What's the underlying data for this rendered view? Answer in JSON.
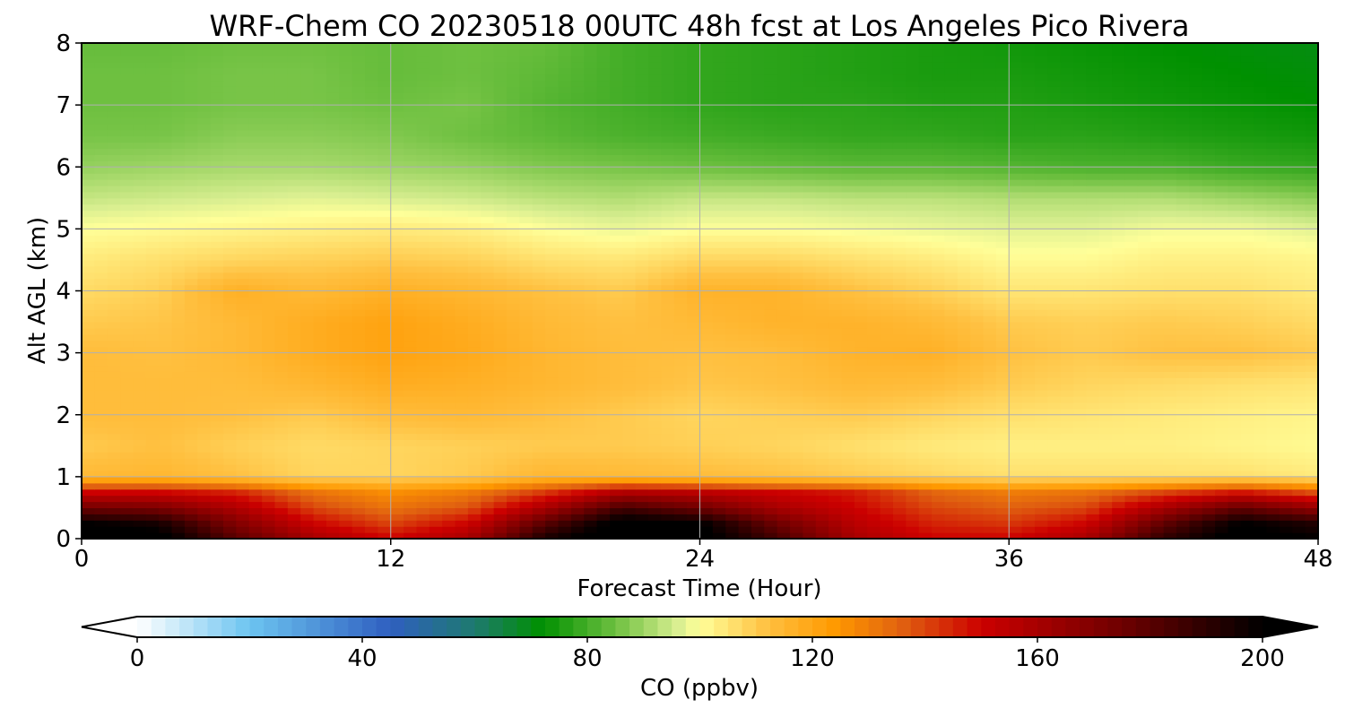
{
  "chart_data": {
    "type": "heatmap",
    "title": "WRF-Chem CO  20230518 00UTC 48h fcst at Los Angeles Pico Rivera",
    "xlabel": "Forecast Time (Hour)",
    "ylabel": "Alt AGL (km)",
    "xlim": [
      0,
      48
    ],
    "ylim": [
      0,
      8
    ],
    "xticks": [
      "0",
      "12",
      "24",
      "36",
      "48"
    ],
    "yticks": [
      "0",
      "1",
      "2",
      "3",
      "4",
      "5",
      "6",
      "7",
      "8"
    ],
    "grid": true,
    "x_hours": [
      0,
      3,
      6,
      9,
      12,
      15,
      18,
      21,
      24,
      27,
      30,
      33,
      36,
      39,
      42,
      45,
      48
    ],
    "y_km": [
      0,
      0.25,
      0.5,
      0.75,
      1,
      1.5,
      2,
      2.5,
      3,
      3.5,
      4,
      4.5,
      5,
      5.5,
      6,
      6.5,
      7,
      7.5,
      8
    ],
    "z_co_ppbv": [
      [
        205,
        205,
        180,
        160,
        150,
        160,
        195,
        210,
        205,
        185,
        160,
        150,
        150,
        160,
        190,
        205,
        200
      ],
      [
        200,
        195,
        170,
        150,
        140,
        150,
        180,
        205,
        200,
        175,
        155,
        145,
        142,
        150,
        178,
        200,
        192
      ],
      [
        175,
        172,
        158,
        140,
        132,
        138,
        160,
        185,
        175,
        160,
        150,
        140,
        136,
        140,
        160,
        178,
        165
      ],
      [
        150,
        150,
        145,
        132,
        126,
        130,
        142,
        158,
        155,
        150,
        146,
        135,
        130,
        132,
        140,
        148,
        138
      ],
      [
        114,
        115,
        112,
        108,
        108,
        110,
        115,
        114,
        113,
        112,
        110,
        108,
        106,
        106,
        106,
        106,
        104
      ],
      [
        110,
        112,
        109,
        107,
        108,
        109,
        110,
        110,
        109,
        108,
        106,
        104,
        103,
        103,
        103,
        102,
        101
      ],
      [
        113,
        113,
        112,
        110,
        113,
        114,
        112,
        110,
        108,
        109,
        110,
        108,
        106,
        105,
        104,
        103,
        102
      ],
      [
        113,
        113,
        113,
        115,
        118,
        117,
        115,
        113,
        111,
        112,
        114,
        113,
        110,
        108,
        107,
        106,
        105
      ],
      [
        113,
        112,
        114,
        118,
        121,
        119,
        115,
        113,
        112,
        113,
        116,
        117,
        112,
        110,
        112,
        112,
        110
      ],
      [
        110,
        111,
        114,
        118,
        121,
        118,
        114,
        112,
        114,
        116,
        116,
        114,
        110,
        109,
        110,
        109,
        107
      ],
      [
        107,
        109,
        117,
        114,
        117,
        115,
        112,
        110,
        116,
        116,
        112,
        109,
        105,
        105,
        106,
        106,
        104
      ],
      [
        104,
        106,
        108,
        109,
        110,
        109,
        106,
        105,
        108,
        108,
        106,
        104,
        101,
        101,
        103,
        103,
        102
      ],
      [
        100,
        101,
        102,
        103,
        104,
        103,
        100,
        98,
        100,
        100,
        99,
        98,
        97,
        97,
        99,
        99,
        97
      ],
      [
        94,
        95,
        96,
        97,
        96,
        95,
        93,
        92,
        94,
        94,
        93,
        93,
        92,
        92,
        92,
        90,
        88
      ],
      [
        89,
        90,
        91,
        91,
        90,
        89,
        87,
        86,
        85,
        84,
        83,
        83,
        82,
        81,
        81,
        79,
        78
      ],
      [
        86,
        86,
        88,
        88,
        87,
        85,
        83,
        81,
        80,
        79,
        78,
        78,
        77,
        77,
        76,
        75,
        74
      ],
      [
        85,
        85,
        86,
        86,
        85,
        86,
        82,
        80,
        78,
        77,
        77,
        76,
        76,
        75,
        74,
        73,
        72
      ],
      [
        85,
        85,
        86,
        86,
        84,
        85,
        83,
        80,
        78,
        77,
        76,
        75,
        75,
        74,
        73,
        72,
        71
      ],
      [
        84,
        84,
        85,
        85,
        84,
        85,
        84,
        80,
        78,
        77,
        76,
        75,
        74,
        73,
        72,
        71,
        70
      ]
    ],
    "colorbar": {
      "label": "CO  (ppbv)",
      "min": 0,
      "max": 200,
      "ticks": [
        "0",
        "40",
        "80",
        "120",
        "160",
        "200"
      ],
      "extend": "both",
      "colormap_stops": [
        {
          "value": 0,
          "color": "#ffffff"
        },
        {
          "value": 20,
          "color": "#6cc4f0"
        },
        {
          "value": 45,
          "color": "#2f5fc0"
        },
        {
          "value": 60,
          "color": "#1e7a6e"
        },
        {
          "value": 72,
          "color": "#009000"
        },
        {
          "value": 85,
          "color": "#6ec040"
        },
        {
          "value": 96,
          "color": "#d8ee90"
        },
        {
          "value": 100,
          "color": "#ffff99"
        },
        {
          "value": 112,
          "color": "#ffc040"
        },
        {
          "value": 124,
          "color": "#ff9900"
        },
        {
          "value": 136,
          "color": "#e06010"
        },
        {
          "value": 150,
          "color": "#cc0000"
        },
        {
          "value": 175,
          "color": "#6e0000"
        },
        {
          "value": 200,
          "color": "#000000"
        }
      ]
    }
  }
}
